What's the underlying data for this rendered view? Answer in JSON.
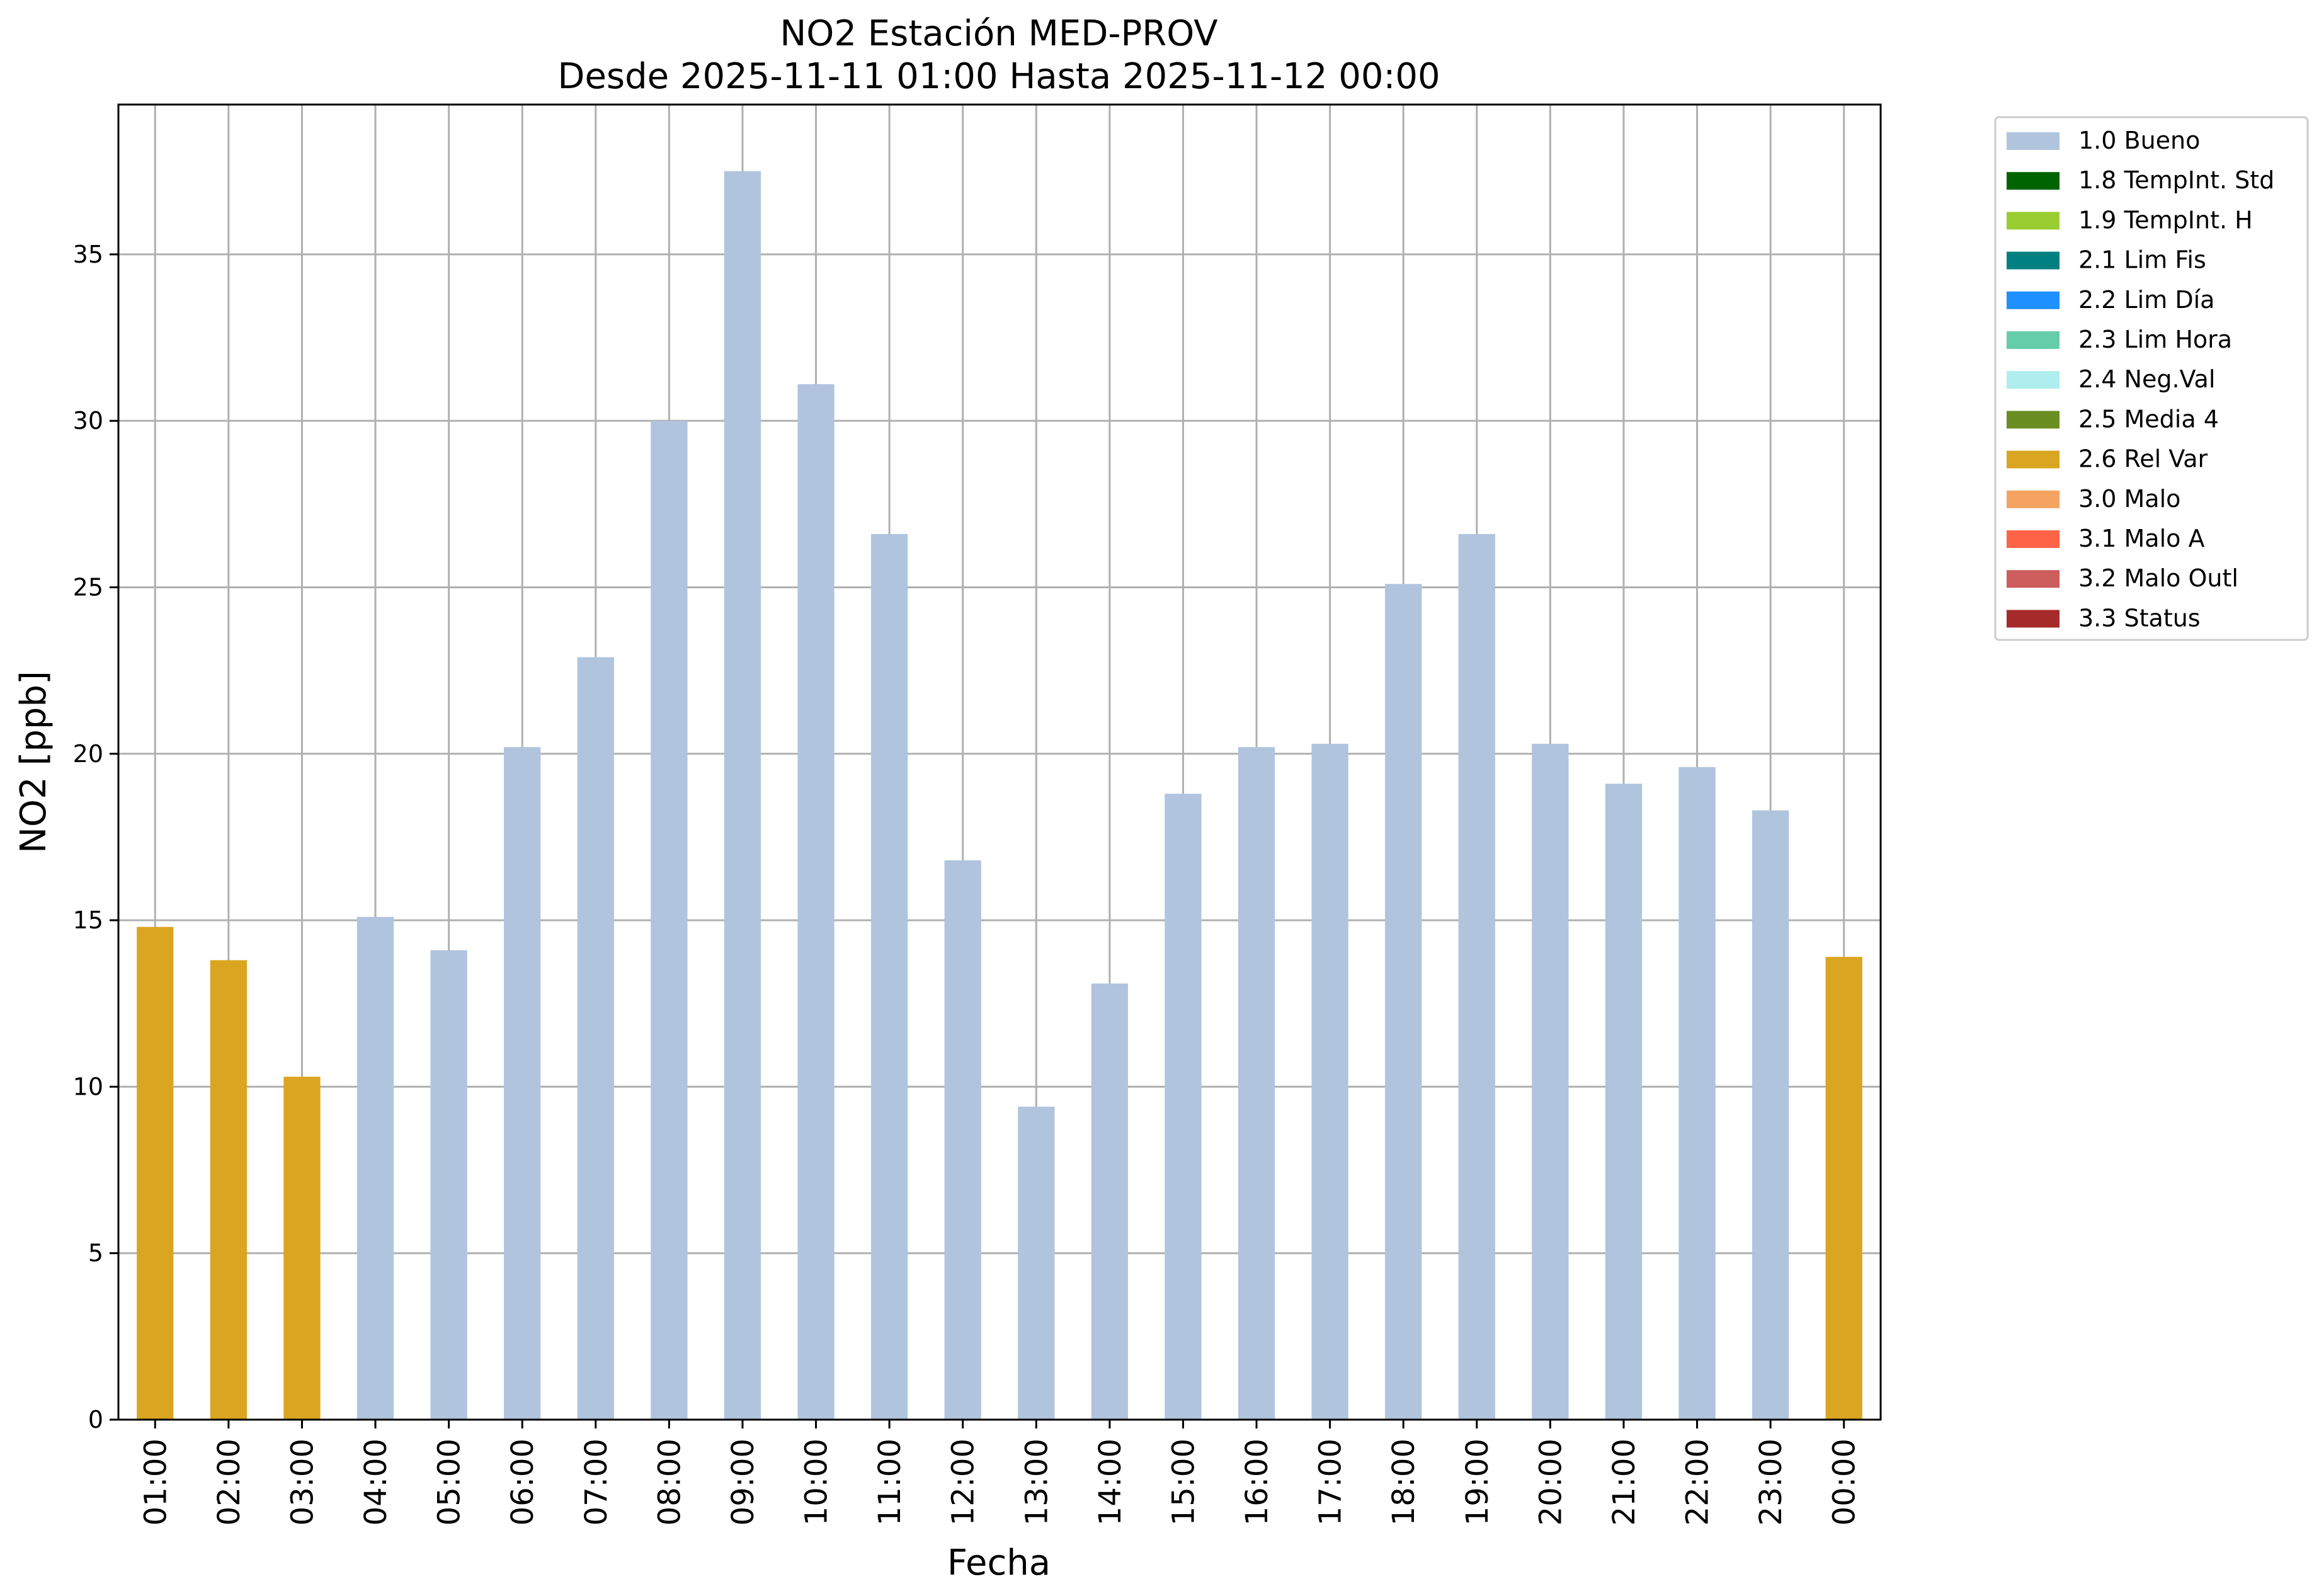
{
  "chart_data": {
    "type": "bar",
    "title": "NO2 Estación MED-PROV",
    "subtitle": "Desde 2025-11-11 01:00 Hasta 2025-11-12 00:00",
    "xlabel": "Fecha",
    "ylabel": "NO2 [ppb]",
    "ylim": [
      0,
      39.5
    ],
    "yticks": [
      "0",
      "5",
      "10",
      "15",
      "20",
      "25",
      "30",
      "35"
    ],
    "grid": true,
    "legend_position": "outside-top-right",
    "categories": [
      "01:00",
      "02:00",
      "03:00",
      "04:00",
      "05:00",
      "06:00",
      "07:00",
      "08:00",
      "09:00",
      "10:00",
      "11:00",
      "12:00",
      "13:00",
      "14:00",
      "15:00",
      "16:00",
      "17:00",
      "18:00",
      "19:00",
      "20:00",
      "21:00",
      "22:00",
      "23:00",
      "00:00"
    ],
    "values": [
      14.8,
      13.8,
      10.3,
      15.1,
      14.1,
      20.2,
      22.9,
      30.0,
      37.5,
      31.1,
      26.6,
      16.8,
      9.4,
      13.1,
      18.8,
      20.2,
      20.3,
      25.1,
      26.6,
      20.3,
      19.1,
      19.6,
      18.3,
      13.9
    ],
    "flags": [
      "2.6 Rel Var",
      "2.6 Rel Var",
      "2.6 Rel Var",
      "1.0 Bueno",
      "1.0 Bueno",
      "1.0 Bueno",
      "1.0 Bueno",
      "1.0 Bueno",
      "1.0 Bueno",
      "1.0 Bueno",
      "1.0 Bueno",
      "1.0 Bueno",
      "1.0 Bueno",
      "1.0 Bueno",
      "1.0 Bueno",
      "1.0 Bueno",
      "1.0 Bueno",
      "1.0 Bueno",
      "1.0 Bueno",
      "1.0 Bueno",
      "1.0 Bueno",
      "1.0 Bueno",
      "1.0 Bueno",
      "2.6 Rel Var"
    ],
    "legend": [
      {
        "label": "1.0 Bueno",
        "color": "#b0c4de"
      },
      {
        "label": "1.8 TempInt. Std",
        "color": "#006400"
      },
      {
        "label": "1.9 TempInt. H",
        "color": "#9acd32"
      },
      {
        "label": "2.1 Lim Fis",
        "color": "#008080"
      },
      {
        "label": "2.2 Lim Día",
        "color": "#1e90ff"
      },
      {
        "label": "2.3 Lim Hora",
        "color": "#66cdaa"
      },
      {
        "label": "2.4 Neg.Val",
        "color": "#afeeee"
      },
      {
        "label": "2.5 Media 4",
        "color": "#6b8e23"
      },
      {
        "label": "2.6 Rel Var",
        "color": "#daa520"
      },
      {
        "label": "3.0 Malo",
        "color": "#f4a460"
      },
      {
        "label": "3.1 Malo A",
        "color": "#ff6347"
      },
      {
        "label": "3.2 Malo Outl",
        "color": "#cd5c5c"
      },
      {
        "label": "3.3 Status",
        "color": "#a52a2a"
      }
    ]
  }
}
